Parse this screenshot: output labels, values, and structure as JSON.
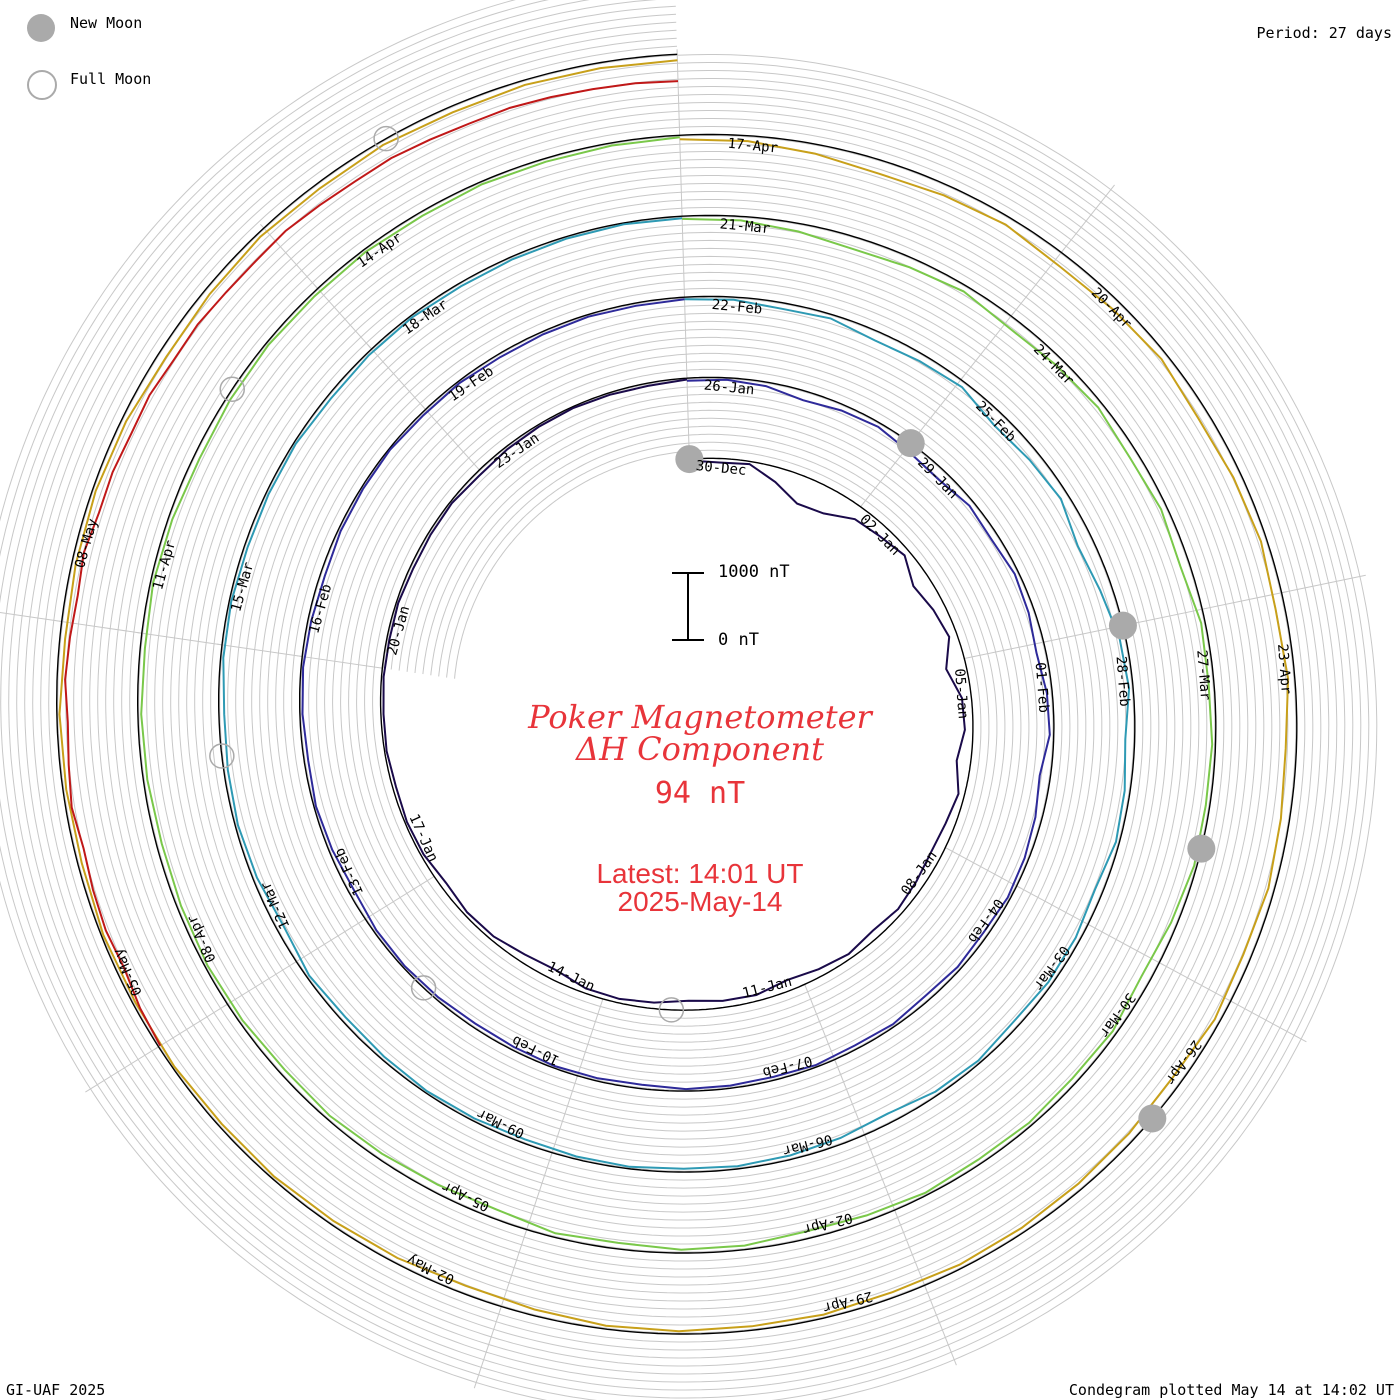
{
  "legend": {
    "new_moon": "New Moon",
    "full_moon": "Full Moon"
  },
  "period_label": "Period: 27 days",
  "credit": "GI-UAF 2025",
  "plotted": "Condegram plotted May 14 at 14:02 UT",
  "title_line1": "Poker Magnetometer",
  "title_line2": "ΔH Component",
  "current_value": "94 nT",
  "latest_line1": "Latest: 14:01 UT",
  "latest_line2": "2025-May-14",
  "scale": {
    "top": "1000 nT",
    "bottom": "0 nT"
  },
  "colors": {
    "accent_text": "#e8343a",
    "moon_marker": "#aaaaaa",
    "grid": "#c8c8c8",
    "spiral": "#000000"
  },
  "chart_data": {
    "type": "line",
    "layout": "condegram-spiral",
    "period_days": 27,
    "series_unit": "nT",
    "start_date": "2024-12-30",
    "end_date": "2025-05-14",
    "date_labels": [
      "30-Dec",
      "02-Jan",
      "05-Jan",
      "08-Jan",
      "11-Jan",
      "14-Jan",
      "17-Jan",
      "20-Jan",
      "23-Jan",
      "26-Jan",
      "29-Jan",
      "01-Feb",
      "04-Feb",
      "07-Feb",
      "10-Feb",
      "13-Feb",
      "16-Feb",
      "19-Feb",
      "22-Feb",
      "25-Feb",
      "28-Feb",
      "03-Mar",
      "06-Mar",
      "09-Mar",
      "12-Mar",
      "15-Mar",
      "18-Mar",
      "21-Mar",
      "24-Mar",
      "27-Mar",
      "30-Mar",
      "02-Apr",
      "05-Apr",
      "08-Apr",
      "11-Apr",
      "14-Apr",
      "17-Apr",
      "20-Apr",
      "23-Apr",
      "26-Apr",
      "29-Apr",
      "02-May",
      "05-May",
      "08-May"
    ],
    "new_moons": [
      "2024-12-30",
      "2025-01-29",
      "2025-02-28",
      "2025-03-29",
      "2025-04-27"
    ],
    "full_moons": [
      "2025-01-13",
      "2025-02-12",
      "2025-03-14",
      "2025-04-13",
      "2025-05-12"
    ],
    "series": [
      {
        "color": "#1a0a4a",
        "start": "2024-12-30",
        "values": [
          20,
          60,
          40,
          220,
          420,
          380,
          200,
          160,
          90,
          260,
          180,
          120,
          300,
          140,
          120,
          210,
          90,
          140,
          160,
          120,
          80,
          120,
          70,
          110,
          160,
          90,
          100,
          140,
          90,
          60,
          70,
          150,
          120,
          60,
          50,
          90,
          40,
          30,
          50,
          30,
          40,
          30,
          40,
          30,
          50,
          40,
          30,
          60,
          40,
          30,
          20,
          30,
          40,
          20
        ]
      },
      {
        "color": "#2e2a9a",
        "start": "2025-01-26",
        "values": [
          40,
          30,
          60,
          140,
          90,
          60,
          120,
          150,
          80,
          110,
          60,
          90,
          140,
          80,
          60,
          160,
          100,
          60,
          40,
          70,
          50,
          80,
          40,
          60,
          30,
          50,
          40,
          30,
          60,
          40,
          30,
          50,
          60,
          40,
          30,
          40,
          80,
          50,
          30,
          60,
          40,
          30,
          50,
          70,
          40,
          30,
          20,
          40,
          30,
          50,
          40,
          30,
          40,
          30
        ]
      },
      {
        "color": "#2e9ab4",
        "start": "2025-02-22",
        "values": [
          30,
          40,
          90,
          60,
          140,
          110,
          80,
          200,
          160,
          120,
          240,
          180,
          90,
          60,
          140,
          80,
          50,
          120,
          70,
          60,
          90,
          40,
          60,
          140,
          90,
          60,
          40,
          50,
          30,
          40,
          60,
          40,
          30,
          50,
          70,
          40,
          110,
          60,
          40,
          60,
          80,
          40,
          30,
          50,
          40,
          30,
          60,
          40,
          30,
          50,
          40,
          30,
          20,
          30
        ]
      },
      {
        "color": "#7ac84a",
        "start": "2025-03-21",
        "values": [
          40,
          60,
          120,
          180,
          140,
          90,
          160,
          120,
          80,
          130,
          90,
          140,
          60,
          80,
          50,
          60,
          40,
          90,
          140,
          60,
          80,
          50,
          70,
          40,
          80,
          110,
          60,
          50,
          90,
          60,
          140,
          120,
          90,
          60,
          80,
          50,
          40,
          60,
          80,
          60,
          50,
          70,
          40,
          60,
          90,
          60,
          40,
          50,
          40,
          60,
          40,
          50,
          40,
          30
        ]
      },
      {
        "color": "#c8a01a",
        "start": "2025-04-17",
        "values": [
          60,
          80,
          140,
          200,
          160,
          120,
          180,
          140,
          100,
          160,
          120,
          90,
          140,
          100,
          160,
          130,
          90,
          120,
          80,
          140,
          110,
          90,
          70,
          60,
          80,
          50,
          60,
          40,
          50,
          90,
          120,
          80,
          60,
          40,
          50,
          30,
          40,
          30,
          60,
          50,
          40,
          80,
          60,
          50,
          70,
          120,
          90,
          60,
          80,
          60,
          90,
          70,
          80,
          90
        ]
      },
      {
        "color": "#c01818",
        "start": "2025-05-05",
        "values": [
          30,
          60,
          120,
          90,
          110,
          140,
          90,
          130,
          160,
          120,
          150,
          180,
          140,
          200,
          190,
          220,
          200,
          240,
          230,
          260,
          270,
          250,
          280,
          300,
          290,
          320,
          340,
          330,
          350,
          370,
          380,
          400
        ]
      }
    ]
  }
}
